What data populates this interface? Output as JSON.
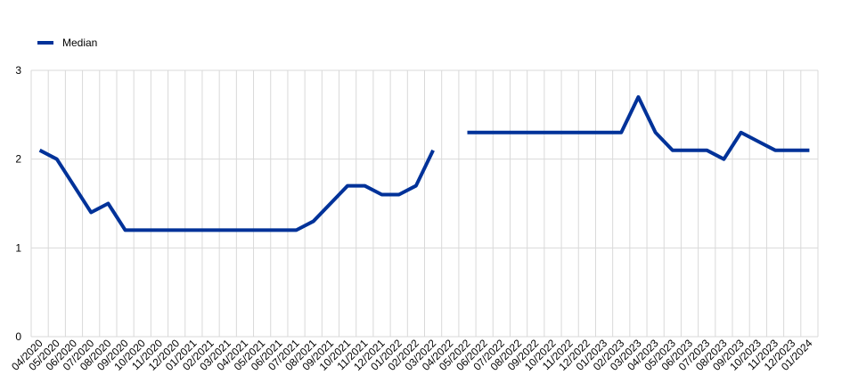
{
  "chart_data": {
    "type": "line",
    "categories": [
      "04/2020",
      "05/2020",
      "06/2020",
      "07/2020",
      "08/2020",
      "09/2020",
      "10/2020",
      "11/2020",
      "12/2020",
      "01/2021",
      "02/2021",
      "03/2021",
      "04/2021",
      "05/2021",
      "06/2021",
      "07/2021",
      "08/2021",
      "09/2021",
      "10/2021",
      "11/2021",
      "12/2021",
      "01/2022",
      "02/2022",
      "03/2022",
      "04/2022",
      "05/2022",
      "06/2022",
      "07/2022",
      "08/2022",
      "09/2022",
      "10/2022",
      "11/2022",
      "12/2022",
      "01/2023",
      "02/2023",
      "03/2023",
      "04/2023",
      "05/2023",
      "06/2023",
      "07/2023",
      "08/2023",
      "09/2023",
      "10/2023",
      "11/2023",
      "12/2023",
      "01/2024"
    ],
    "series": [
      {
        "name": "Median",
        "color": "#003299",
        "values": [
          2.1,
          2.0,
          1.7,
          1.4,
          1.5,
          1.2,
          1.2,
          1.2,
          1.2,
          1.2,
          1.2,
          1.2,
          1.2,
          1.2,
          1.2,
          1.2,
          1.3,
          1.5,
          1.7,
          1.7,
          1.6,
          1.6,
          1.7,
          2.1,
          null,
          2.3,
          2.3,
          2.3,
          2.3,
          2.3,
          2.3,
          2.3,
          2.3,
          2.3,
          2.3,
          2.7,
          2.3,
          2.1,
          2.1,
          2.1,
          2.0,
          2.3,
          2.2,
          2.1,
          2.1,
          2.1
        ]
      }
    ],
    "ylim": [
      0,
      3
    ],
    "yticks": [
      0,
      1,
      2,
      3
    ],
    "grid": true,
    "legend": "top-left"
  }
}
